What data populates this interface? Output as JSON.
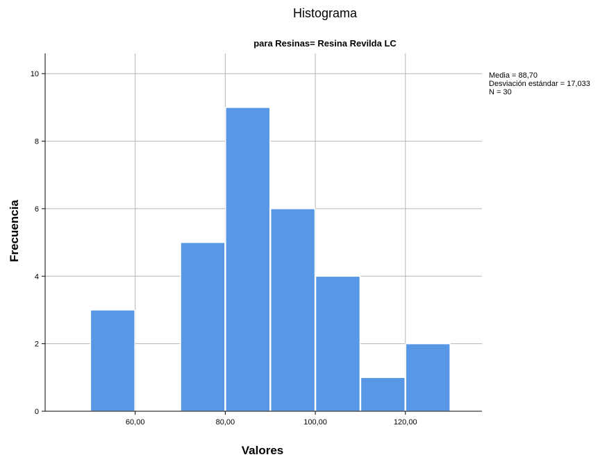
{
  "chart_data": {
    "type": "bar",
    "title": "Histograma",
    "subtitle": "para Resinas= Resina Revilda LC",
    "xlabel": "Valores",
    "ylabel": "Frecuencia",
    "bin_width": 10,
    "bins": [
      {
        "start": 50,
        "end": 60,
        "count": 3
      },
      {
        "start": 60,
        "end": 70,
        "count": 0
      },
      {
        "start": 70,
        "end": 80,
        "count": 5
      },
      {
        "start": 80,
        "end": 90,
        "count": 9
      },
      {
        "start": 90,
        "end": 100,
        "count": 6
      },
      {
        "start": 100,
        "end": 110,
        "count": 4
      },
      {
        "start": 110,
        "end": 120,
        "count": 1
      },
      {
        "start": 120,
        "end": 130,
        "count": 2
      }
    ],
    "xlim": [
      40,
      137
    ],
    "ylim": [
      0,
      10.6
    ],
    "x_ticks": [
      {
        "value": 60,
        "label": "60,00"
      },
      {
        "value": 80,
        "label": "80,00"
      },
      {
        "value": 100,
        "label": "100,00"
      },
      {
        "value": 120,
        "label": "120,00"
      }
    ],
    "y_ticks": [
      {
        "value": 0,
        "label": "0"
      },
      {
        "value": 2,
        "label": "2"
      },
      {
        "value": 4,
        "label": "4"
      },
      {
        "value": 6,
        "label": "6"
      },
      {
        "value": 8,
        "label": "8"
      },
      {
        "value": 10,
        "label": "10"
      }
    ],
    "grid": true,
    "bar_color": "#5797e5",
    "stats": [
      "Media = 88,70",
      "Desviación estándar = 17,033",
      "N = 30"
    ]
  }
}
